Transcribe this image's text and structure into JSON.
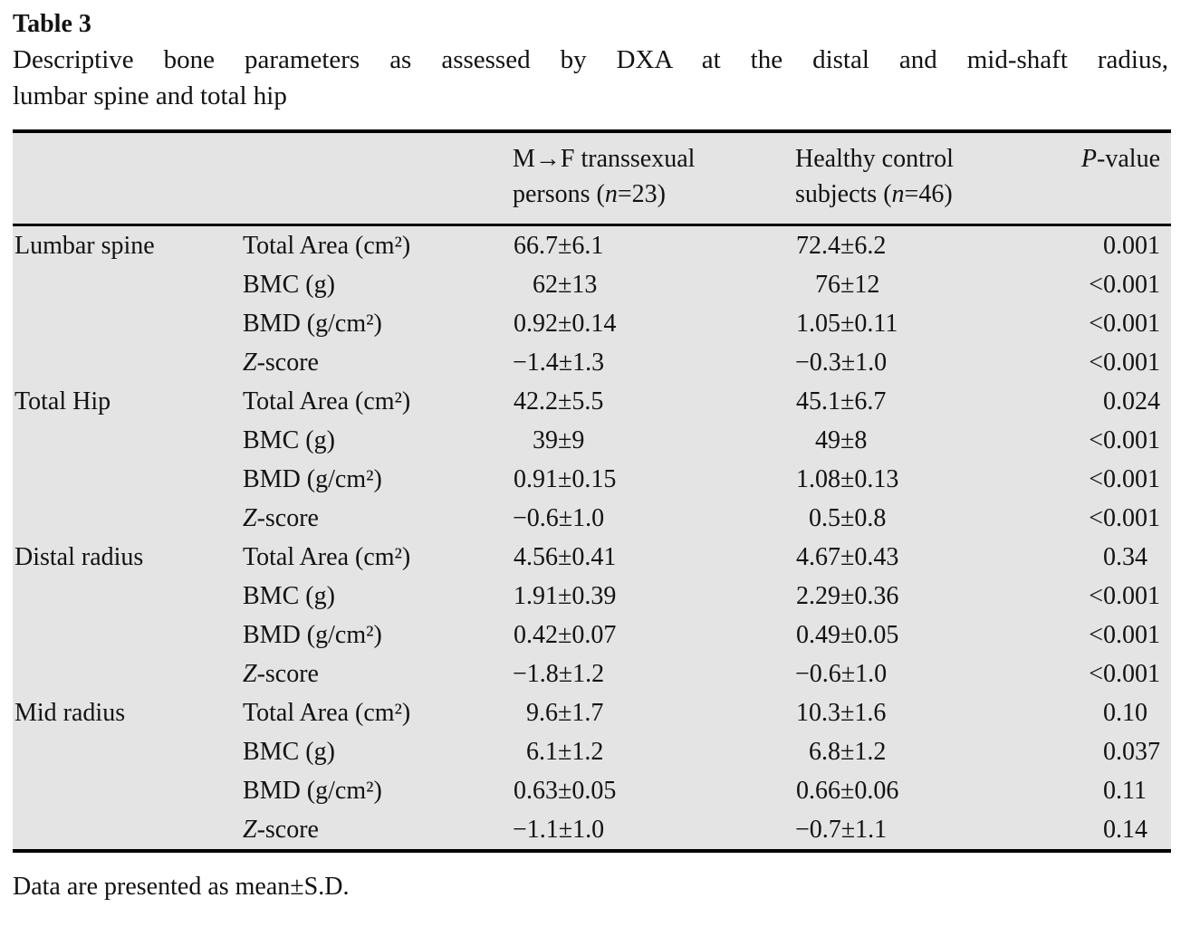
{
  "table_label": "Table 3",
  "caption_line1": "Descriptive bone parameters as assessed by DXA at the distal and mid-shaft radius,",
  "caption_line2": "lumbar spine and total hip",
  "footnote": "Data are presented as mean±S.D.",
  "colors": {
    "table_background": "#e4e4e4",
    "rule": "#000000",
    "text": "#121212",
    "page_background": "#ffffff"
  },
  "table": {
    "columns": [
      {
        "id": "region",
        "header_lines": []
      },
      {
        "id": "parameter",
        "header_lines": []
      },
      {
        "id": "mtf",
        "header_lines": [
          "M→F transsexual",
          "persons (*n*=23)"
        ]
      },
      {
        "id": "control",
        "header_lines": [
          "Healthy control",
          "subjects (*n*=46)"
        ]
      },
      {
        "id": "pvalue",
        "header_lines": [
          "*P*-value"
        ]
      }
    ],
    "rows": [
      {
        "region": "Lumbar spine",
        "parameter": "Total Area (cm²)",
        "mtf": "66.7±6.1",
        "control": "72.4±6.2",
        "p": "0.001"
      },
      {
        "region": "",
        "parameter": "BMC (g)",
        "mtf": "62±13",
        "control": "76±12",
        "p": "<0.001"
      },
      {
        "region": "",
        "parameter": "BMD (g/cm²)",
        "mtf": "0.92±0.14",
        "control": "1.05±0.11",
        "p": "<0.001"
      },
      {
        "region": "",
        "parameter": "*Z*-score",
        "mtf": "−1.4±1.3",
        "control": "−0.3±1.0",
        "p": "<0.001"
      },
      {
        "region": "Total Hip",
        "parameter": "Total Area (cm²)",
        "mtf": "42.2±5.5",
        "control": "45.1±6.7",
        "p": "0.024"
      },
      {
        "region": "",
        "parameter": "BMC (g)",
        "mtf": "39±9",
        "control": "49±8",
        "p": "<0.001"
      },
      {
        "region": "",
        "parameter": "BMD (g/cm²)",
        "mtf": "0.91±0.15",
        "control": "1.08±0.13",
        "p": "<0.001"
      },
      {
        "region": "",
        "parameter": "*Z*-score",
        "mtf": "−0.6±1.0",
        "control": "0.5±0.8",
        "p": "<0.001"
      },
      {
        "region": "Distal radius",
        "parameter": "Total Area (cm²)",
        "mtf": "4.56±0.41",
        "control": "4.67±0.43",
        "p": "0.34"
      },
      {
        "region": "",
        "parameter": "BMC (g)",
        "mtf": "1.91±0.39",
        "control": "2.29±0.36",
        "p": "<0.001"
      },
      {
        "region": "",
        "parameter": "BMD (g/cm²)",
        "mtf": "0.42±0.07",
        "control": "0.49±0.05",
        "p": "<0.001"
      },
      {
        "region": "",
        "parameter": "*Z*-score",
        "mtf": "−1.8±1.2",
        "control": "−0.6±1.0",
        "p": "<0.001"
      },
      {
        "region": "Mid radius",
        "parameter": "Total Area (cm²)",
        "mtf": "9.6±1.7",
        "control": "10.3±1.6",
        "p": "0.10"
      },
      {
        "region": "",
        "parameter": "BMC (g)",
        "mtf": "6.1±1.2",
        "control": "6.8±1.2",
        "p": "0.037"
      },
      {
        "region": "",
        "parameter": "BMD (g/cm²)",
        "mtf": "0.63±0.05",
        "control": "0.66±0.06",
        "p": "0.11"
      },
      {
        "region": "",
        "parameter": "*Z*-score",
        "mtf": "−1.1±1.0",
        "control": "−0.7±1.1",
        "p": "0.14"
      }
    ]
  }
}
